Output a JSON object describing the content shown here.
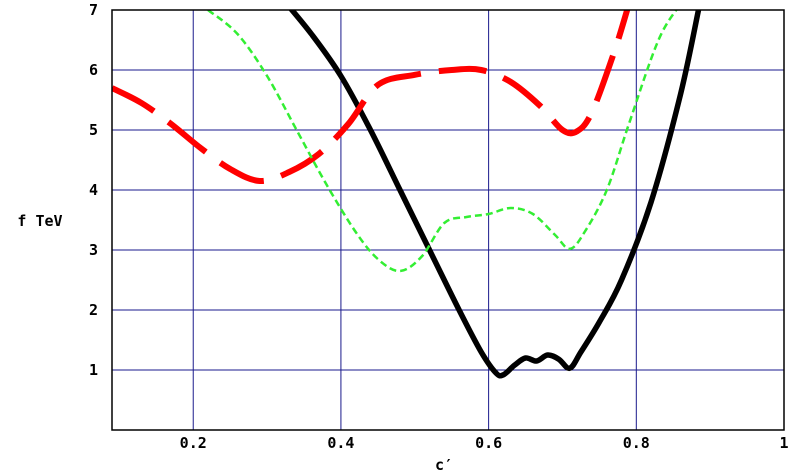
{
  "chart_data": {
    "type": "line",
    "title": "",
    "xlabel": "c′",
    "ylabel": "f TeV",
    "xlim": [
      0.09,
      1.0
    ],
    "ylim": [
      0.0,
      7.0
    ],
    "grid": true,
    "xticks": [
      0.2,
      0.4,
      0.6,
      0.8,
      1.0
    ],
    "xtick_labels": [
      "0.2",
      "0.4",
      "0.6",
      "0.8",
      "1"
    ],
    "yticks": [
      1,
      2,
      3,
      4,
      5,
      6,
      7
    ],
    "ytick_labels": [
      "1",
      "2",
      "3",
      "4",
      "5",
      "6",
      "7"
    ],
    "colors": {
      "grid": "#1a1a8c",
      "black_series": "#000000",
      "red_series": "#ff0000",
      "green_series": "#33ee33"
    },
    "series": [
      {
        "style": "solid-thick-black",
        "x": [
          0.32,
          0.36,
          0.4,
          0.44,
          0.48,
          0.52,
          0.56,
          0.59,
          0.61,
          0.62,
          0.635,
          0.65,
          0.665,
          0.68,
          0.695,
          0.71,
          0.725,
          0.75,
          0.78,
          0.82,
          0.86,
          0.885
        ],
        "y": [
          7.2,
          6.6,
          5.9,
          5.0,
          4.0,
          3.0,
          2.0,
          1.3,
          0.95,
          0.92,
          1.08,
          1.2,
          1.15,
          1.25,
          1.18,
          1.03,
          1.3,
          1.8,
          2.5,
          3.8,
          5.6,
          7.05
        ]
      },
      {
        "style": "long-dash-red",
        "x": [
          0.09,
          0.13,
          0.17,
          0.21,
          0.25,
          0.29,
          0.33,
          0.37,
          0.41,
          0.45,
          0.5,
          0.55,
          0.59,
          0.63,
          0.67,
          0.7,
          0.72,
          0.74,
          0.77,
          0.79
        ],
        "y": [
          5.7,
          5.45,
          5.1,
          4.7,
          4.35,
          4.15,
          4.3,
          4.6,
          5.1,
          5.75,
          5.92,
          6.0,
          6.0,
          5.8,
          5.4,
          5.0,
          4.98,
          5.3,
          6.3,
          7.1
        ]
      },
      {
        "style": "short-dash-green",
        "x": [
          0.22,
          0.26,
          0.3,
          0.34,
          0.38,
          0.42,
          0.45,
          0.48,
          0.51,
          0.54,
          0.57,
          0.6,
          0.63,
          0.66,
          0.69,
          0.71,
          0.73,
          0.76,
          0.79,
          0.83,
          0.86
        ],
        "y": [
          7.0,
          6.6,
          5.9,
          5.0,
          4.1,
          3.3,
          2.85,
          2.65,
          2.9,
          3.45,
          3.55,
          3.6,
          3.7,
          3.6,
          3.25,
          3.02,
          3.3,
          4.0,
          5.1,
          6.5,
          7.1
        ]
      }
    ]
  }
}
